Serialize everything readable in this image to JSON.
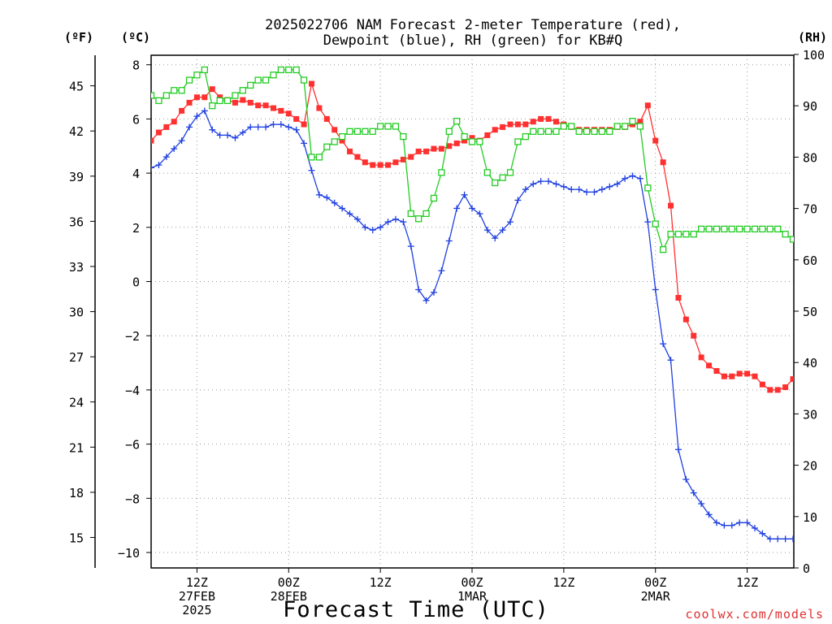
{
  "chart_data": {
    "type": "line",
    "title_line1": "2025022706 NAM Forecast 2-meter Temperature (red),",
    "title_line2": "Dewpoint (blue), RH (green) for KB#Q",
    "unit_f": "(ºF)",
    "unit_c": "(ºC)",
    "unit_rh": "(RH)",
    "xlabel": "Forecast Time (UTC)",
    "credit": "coolwx.com/models",
    "x_unit": "forecast hour (2025-02-27 06Z)",
    "x_range": [
      0,
      84
    ],
    "y_left_c_range": [
      -11,
      8.5
    ],
    "y_rh_range": [
      0,
      100
    ],
    "grid": "dotted",
    "x_ticks": [
      {
        "hour": 6,
        "lines": [
          "12Z",
          "27FEB",
          "2025"
        ]
      },
      {
        "hour": 18,
        "lines": [
          "00Z",
          "28FEB"
        ]
      },
      {
        "hour": 30,
        "lines": [
          "12Z"
        ]
      },
      {
        "hour": 42,
        "lines": [
          "00Z",
          "1MAR"
        ]
      },
      {
        "hour": 54,
        "lines": [
          "12Z"
        ]
      },
      {
        "hour": 66,
        "lines": [
          "00Z",
          "2MAR"
        ]
      },
      {
        "hour": 78,
        "lines": [
          "12Z"
        ]
      }
    ],
    "y_ticks_c": [
      "8",
      "6",
      "4",
      "2",
      "0",
      "−2",
      "−4",
      "−6",
      "−8",
      "−10"
    ],
    "y_ticks_f": [
      "45",
      "42",
      "39",
      "36",
      "33",
      "30",
      "27",
      "24",
      "21",
      "18",
      "15"
    ],
    "y_ticks_rh": [
      "100",
      "90",
      "80",
      "70",
      "60",
      "50",
      "40",
      "30",
      "20",
      "10",
      "0"
    ],
    "series": [
      {
        "name": "Temperature",
        "units": "°C",
        "color": "#ff3030",
        "marker": "filled-square",
        "axis": "left",
        "points": [
          [
            0,
            5.2
          ],
          [
            1,
            5.5
          ],
          [
            2,
            5.7
          ],
          [
            3,
            5.9
          ],
          [
            4,
            6.3
          ],
          [
            5,
            6.6
          ],
          [
            6,
            6.8
          ],
          [
            7,
            6.8
          ],
          [
            8,
            7.1
          ],
          [
            9,
            6.8
          ],
          [
            10,
            6.7
          ],
          [
            11,
            6.6
          ],
          [
            12,
            6.7
          ],
          [
            13,
            6.6
          ],
          [
            14,
            6.5
          ],
          [
            15,
            6.5
          ],
          [
            16,
            6.4
          ],
          [
            17,
            6.3
          ],
          [
            18,
            6.2
          ],
          [
            19,
            6.0
          ],
          [
            20,
            5.8
          ],
          [
            21,
            7.3
          ],
          [
            22,
            6.4
          ],
          [
            23,
            6.0
          ],
          [
            24,
            5.6
          ],
          [
            25,
            5.2
          ],
          [
            26,
            4.8
          ],
          [
            27,
            4.6
          ],
          [
            28,
            4.4
          ],
          [
            29,
            4.3
          ],
          [
            30,
            4.3
          ],
          [
            31,
            4.3
          ],
          [
            32,
            4.4
          ],
          [
            33,
            4.5
          ],
          [
            34,
            4.6
          ],
          [
            35,
            4.8
          ],
          [
            36,
            4.8
          ],
          [
            37,
            4.9
          ],
          [
            38,
            4.9
          ],
          [
            39,
            5.0
          ],
          [
            40,
            5.1
          ],
          [
            41,
            5.2
          ],
          [
            42,
            5.3
          ],
          [
            43,
            5.2
          ],
          [
            44,
            5.4
          ],
          [
            45,
            5.6
          ],
          [
            46,
            5.7
          ],
          [
            47,
            5.8
          ],
          [
            48,
            5.8
          ],
          [
            49,
            5.8
          ],
          [
            50,
            5.9
          ],
          [
            51,
            6.0
          ],
          [
            52,
            6.0
          ],
          [
            53,
            5.9
          ],
          [
            54,
            5.8
          ],
          [
            55,
            5.7
          ],
          [
            56,
            5.6
          ],
          [
            57,
            5.6
          ],
          [
            58,
            5.6
          ],
          [
            59,
            5.6
          ],
          [
            60,
            5.6
          ],
          [
            61,
            5.7
          ],
          [
            62,
            5.7
          ],
          [
            63,
            5.8
          ],
          [
            64,
            5.9
          ],
          [
            65,
            6.5
          ],
          [
            66,
            5.2
          ],
          [
            67,
            4.4
          ],
          [
            68,
            2.8
          ],
          [
            69,
            -0.6
          ],
          [
            70,
            -1.4
          ],
          [
            71,
            -2.0
          ],
          [
            72,
            -2.8
          ],
          [
            73,
            -3.1
          ],
          [
            74,
            -3.3
          ],
          [
            75,
            -3.5
          ],
          [
            76,
            -3.5
          ],
          [
            77,
            -3.4
          ],
          [
            78,
            -3.4
          ],
          [
            79,
            -3.5
          ],
          [
            80,
            -3.8
          ],
          [
            81,
            -4.0
          ],
          [
            82,
            -4.0
          ],
          [
            83,
            -3.9
          ],
          [
            84,
            -3.6
          ],
          [
            85,
            -2.9
          ]
        ]
      },
      {
        "name": "Dewpoint",
        "units": "°C",
        "color": "#2040e0",
        "marker": "plus",
        "axis": "left",
        "points": [
          [
            0,
            4.2
          ],
          [
            1,
            4.3
          ],
          [
            2,
            4.6
          ],
          [
            3,
            4.9
          ],
          [
            4,
            5.2
          ],
          [
            5,
            5.7
          ],
          [
            6,
            6.1
          ],
          [
            7,
            6.3
          ],
          [
            8,
            5.6
          ],
          [
            9,
            5.4
          ],
          [
            10,
            5.4
          ],
          [
            11,
            5.3
          ],
          [
            12,
            5.5
          ],
          [
            13,
            5.7
          ],
          [
            14,
            5.7
          ],
          [
            15,
            5.7
          ],
          [
            16,
            5.8
          ],
          [
            17,
            5.8
          ],
          [
            18,
            5.7
          ],
          [
            19,
            5.6
          ],
          [
            20,
            5.1
          ],
          [
            21,
            4.1
          ],
          [
            22,
            3.2
          ],
          [
            23,
            3.1
          ],
          [
            24,
            2.9
          ],
          [
            25,
            2.7
          ],
          [
            26,
            2.5
          ],
          [
            27,
            2.3
          ],
          [
            28,
            2.0
          ],
          [
            29,
            1.9
          ],
          [
            30,
            2.0
          ],
          [
            31,
            2.2
          ],
          [
            32,
            2.3
          ],
          [
            33,
            2.2
          ],
          [
            34,
            1.3
          ],
          [
            35,
            -0.3
          ],
          [
            36,
            -0.7
          ],
          [
            37,
            -0.4
          ],
          [
            38,
            0.4
          ],
          [
            39,
            1.5
          ],
          [
            40,
            2.7
          ],
          [
            41,
            3.2
          ],
          [
            42,
            2.7
          ],
          [
            43,
            2.5
          ],
          [
            44,
            1.9
          ],
          [
            45,
            1.6
          ],
          [
            46,
            1.9
          ],
          [
            47,
            2.2
          ],
          [
            48,
            3.0
          ],
          [
            49,
            3.4
          ],
          [
            50,
            3.6
          ],
          [
            51,
            3.7
          ],
          [
            52,
            3.7
          ],
          [
            53,
            3.6
          ],
          [
            54,
            3.5
          ],
          [
            55,
            3.4
          ],
          [
            56,
            3.4
          ],
          [
            57,
            3.3
          ],
          [
            58,
            3.3
          ],
          [
            59,
            3.4
          ],
          [
            60,
            3.5
          ],
          [
            61,
            3.6
          ],
          [
            62,
            3.8
          ],
          [
            63,
            3.9
          ],
          [
            64,
            3.8
          ],
          [
            65,
            2.2
          ],
          [
            66,
            -0.3
          ],
          [
            67,
            -2.3
          ],
          [
            68,
            -2.9
          ],
          [
            69,
            -6.2
          ],
          [
            70,
            -7.3
          ],
          [
            71,
            -7.8
          ],
          [
            72,
            -8.2
          ],
          [
            73,
            -8.6
          ],
          [
            74,
            -8.9
          ],
          [
            75,
            -9.0
          ],
          [
            76,
            -9.0
          ],
          [
            77,
            -8.9
          ],
          [
            78,
            -8.9
          ],
          [
            79,
            -9.1
          ],
          [
            80,
            -9.3
          ],
          [
            81,
            -9.5
          ],
          [
            82,
            -9.5
          ],
          [
            83,
            -9.5
          ],
          [
            84,
            -9.5
          ],
          [
            85,
            -9.5
          ]
        ]
      },
      {
        "name": "RH",
        "units": "%",
        "color": "#22cc22",
        "marker": "open-square",
        "axis": "right",
        "points": [
          [
            0,
            92
          ],
          [
            1,
            91
          ],
          [
            2,
            92
          ],
          [
            3,
            93
          ],
          [
            4,
            93
          ],
          [
            5,
            95
          ],
          [
            6,
            96
          ],
          [
            7,
            97
          ],
          [
            8,
            90
          ],
          [
            9,
            91
          ],
          [
            10,
            91
          ],
          [
            11,
            92
          ],
          [
            12,
            93
          ],
          [
            13,
            94
          ],
          [
            14,
            95
          ],
          [
            15,
            95
          ],
          [
            16,
            96
          ],
          [
            17,
            97
          ],
          [
            18,
            97
          ],
          [
            19,
            97
          ],
          [
            20,
            95
          ],
          [
            21,
            80
          ],
          [
            22,
            80
          ],
          [
            23,
            82
          ],
          [
            24,
            83
          ],
          [
            25,
            84
          ],
          [
            26,
            85
          ],
          [
            27,
            85
          ],
          [
            28,
            85
          ],
          [
            29,
            85
          ],
          [
            30,
            86
          ],
          [
            31,
            86
          ],
          [
            32,
            86
          ],
          [
            33,
            84
          ],
          [
            34,
            69
          ],
          [
            35,
            68
          ],
          [
            36,
            69
          ],
          [
            37,
            72
          ],
          [
            38,
            77
          ],
          [
            39,
            85
          ],
          [
            40,
            87
          ],
          [
            41,
            84
          ],
          [
            42,
            83
          ],
          [
            43,
            83
          ],
          [
            44,
            77
          ],
          [
            45,
            75
          ],
          [
            46,
            76
          ],
          [
            47,
            77
          ],
          [
            48,
            83
          ],
          [
            49,
            84
          ],
          [
            50,
            85
          ],
          [
            51,
            85
          ],
          [
            52,
            85
          ],
          [
            53,
            85
          ],
          [
            54,
            86
          ],
          [
            55,
            86
          ],
          [
            56,
            85
          ],
          [
            57,
            85
          ],
          [
            58,
            85
          ],
          [
            59,
            85
          ],
          [
            60,
            85
          ],
          [
            61,
            86
          ],
          [
            62,
            86
          ],
          [
            63,
            87
          ],
          [
            64,
            86
          ],
          [
            65,
            74
          ],
          [
            66,
            67
          ],
          [
            67,
            62
          ],
          [
            68,
            65
          ],
          [
            69,
            65
          ],
          [
            70,
            65
          ],
          [
            71,
            65
          ],
          [
            72,
            66
          ],
          [
            73,
            66
          ],
          [
            74,
            66
          ],
          [
            75,
            66
          ],
          [
            76,
            66
          ],
          [
            77,
            66
          ],
          [
            78,
            66
          ],
          [
            79,
            66
          ],
          [
            80,
            66
          ],
          [
            81,
            66
          ],
          [
            82,
            66
          ],
          [
            83,
            65
          ],
          [
            84,
            64
          ],
          [
            85,
            60
          ]
        ]
      }
    ]
  }
}
